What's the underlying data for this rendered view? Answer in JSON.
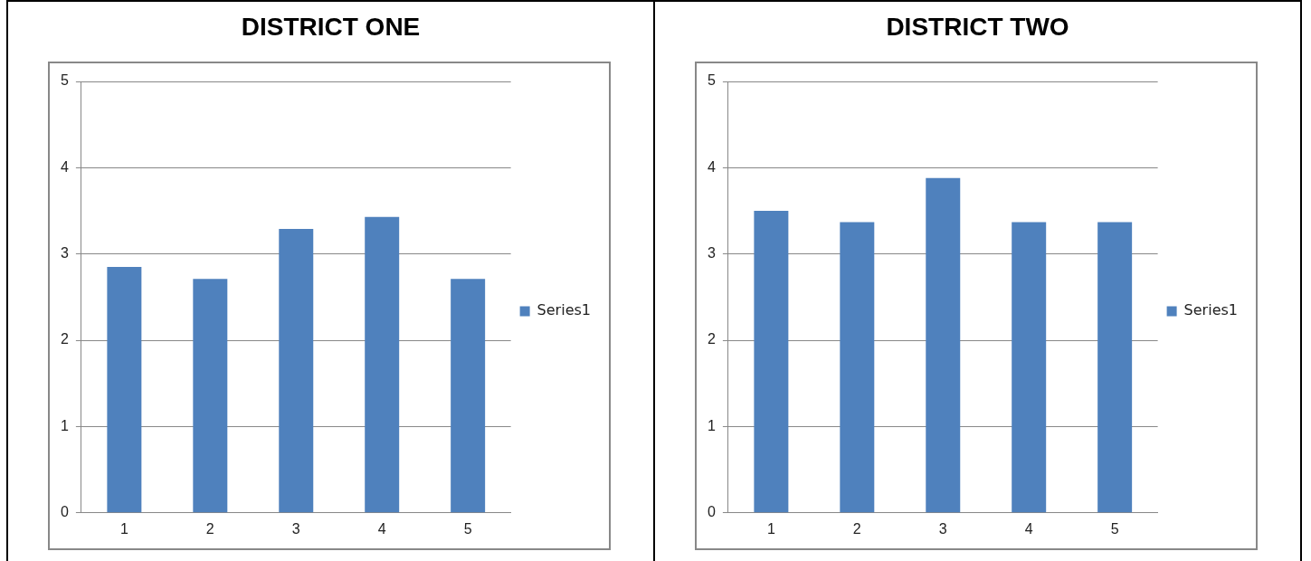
{
  "chart_data": [
    {
      "type": "bar",
      "title": "DISTRICT ONE",
      "categories": [
        "1",
        "2",
        "3",
        "4",
        "5"
      ],
      "series": [
        {
          "name": "Series1",
          "color": "#4f81bd",
          "values": [
            2.85,
            2.71,
            3.29,
            3.43,
            2.71
          ]
        }
      ],
      "ylim": [
        0,
        5
      ],
      "yticks": [
        0,
        1,
        2,
        3,
        4,
        5
      ],
      "grid": "y",
      "legend": "right"
    },
    {
      "type": "bar",
      "title": "DISTRICT TWO",
      "categories": [
        "1",
        "2",
        "3",
        "4",
        "5"
      ],
      "series": [
        {
          "name": "Series1",
          "color": "#4f81bd",
          "values": [
            3.5,
            3.37,
            3.88,
            3.37,
            3.37
          ]
        }
      ],
      "ylim": [
        0,
        5
      ],
      "yticks": [
        0,
        1,
        2,
        3,
        4,
        5
      ],
      "grid": "y",
      "legend": "right"
    }
  ]
}
